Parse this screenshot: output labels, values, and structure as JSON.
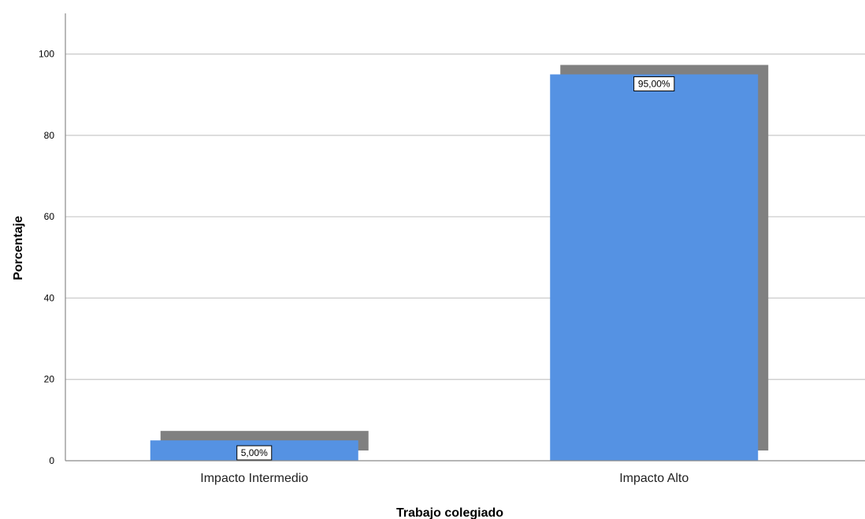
{
  "chart_data": {
    "type": "bar",
    "categories": [
      "Impacto Intermedio",
      "Impacto Alto"
    ],
    "values": [
      5.0,
      95.0
    ],
    "data_labels": [
      "5,00%",
      "95,00%"
    ],
    "xlabel": "Trabajo colegiado",
    "ylabel": "Porcentaje",
    "ylim": [
      0,
      110
    ],
    "yticks": [
      0,
      20,
      40,
      60,
      80,
      100
    ],
    "grid": true,
    "bar_style": "3d-shadow",
    "colors": {
      "bar": "#5592e3",
      "shadow": "#808080",
      "grid": "#c8c8c8",
      "axis": "#8a8a8a"
    }
  }
}
